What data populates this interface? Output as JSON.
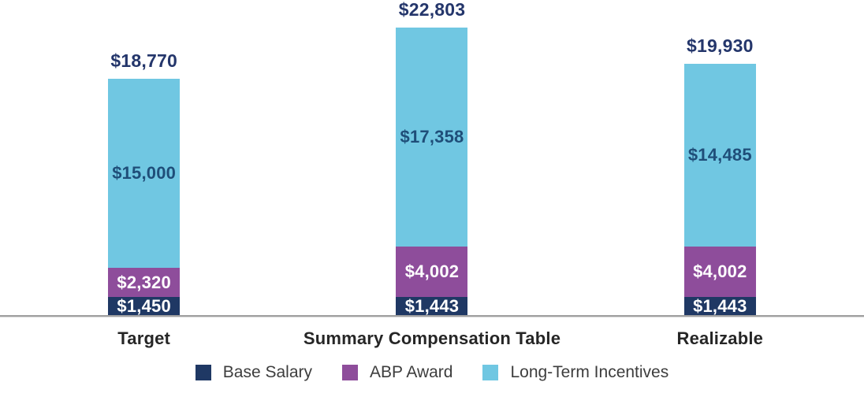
{
  "chart_data": {
    "type": "bar",
    "subtype": "stacked-vertical",
    "title": "",
    "categories": [
      "Target",
      "Summary Compensation Table",
      "Realizable"
    ],
    "series": [
      {
        "key": "base",
        "name": "Base Salary",
        "color": "#1F3864",
        "values": [
          1450,
          1443,
          1443
        ]
      },
      {
        "key": "abp",
        "name": "ABP Award",
        "color": "#8E4D9B",
        "values": [
          2320,
          4002,
          4002
        ]
      },
      {
        "key": "lti",
        "name": "Long-Term Incentives",
        "color": "#70C7E2",
        "values": [
          15000,
          17358,
          14485
        ]
      }
    ],
    "totals": [
      18770,
      22803,
      19930
    ],
    "stack_order_top_to_bottom": [
      "lti",
      "abp",
      "base"
    ],
    "value_format": "$#,##0",
    "grid": false,
    "legend_position": "bottom",
    "baseline_axis": "x"
  },
  "bars": [
    {
      "category": "Target",
      "total_label": "$18,770",
      "lti_label": "$15,000",
      "abp_label": "$2,320",
      "base_label": "$1,450"
    },
    {
      "category": "Summary Compensation Table",
      "total_label": "$22,803",
      "lti_label": "$17,358",
      "abp_label": "$4,002",
      "base_label": "$1,443"
    },
    {
      "category": "Realizable",
      "total_label": "$19,930",
      "lti_label": "$14,485",
      "abp_label": "$4,002",
      "base_label": "$1,443"
    }
  ],
  "legend": {
    "items": [
      {
        "label": "Base Salary",
        "color": "#1F3864"
      },
      {
        "label": "ABP Award",
        "color": "#8E4D9B"
      },
      {
        "label": "Long-Term Incentives",
        "color": "#70C7E2"
      }
    ]
  },
  "colors": {
    "total_label_text": "#24366B",
    "lti_value_text": "#1F4E79",
    "segment_value_text_light": "#FFFFFF",
    "axis_line": "#A0A0A0",
    "category_text": "#262626",
    "legend_text": "#3D3D3D",
    "background": "#FFFFFF"
  }
}
